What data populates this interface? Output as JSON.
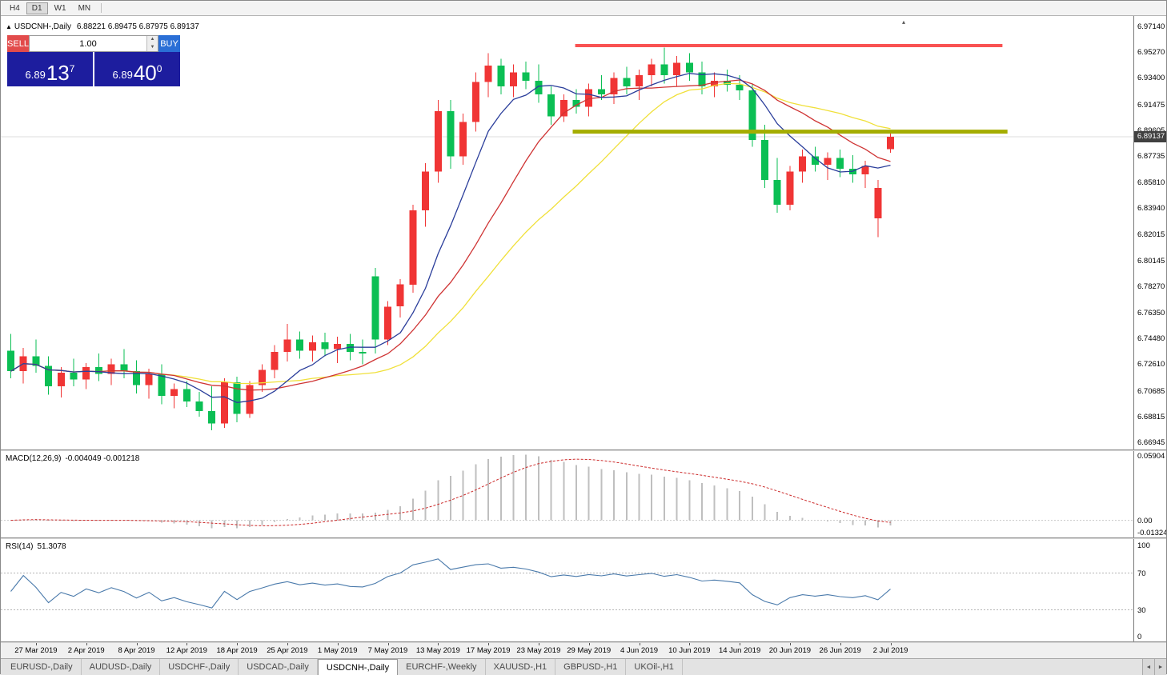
{
  "toolbar": {
    "timeframes": [
      "H4",
      "D1",
      "W1",
      "MN"
    ],
    "active_timeframe": "D1"
  },
  "info_bar": {
    "collapse_arrow": "▲",
    "symbol_label": "USDCNH-,Daily",
    "ohlc_values": "6.88221 6.89475 6.87975 6.89137"
  },
  "trade_panel": {
    "sell_label": "SELL",
    "buy_label": "BUY",
    "volume": "1.00",
    "spin_up": "▲",
    "spin_down": "▼",
    "sell_price": {
      "prefix": "6.89",
      "main": "13",
      "sup": "7"
    },
    "buy_price": {
      "prefix": "6.89",
      "main": "40",
      "sup": "0"
    }
  },
  "chart_data": {
    "type": "candlestick",
    "symbol": "USDCNH-,Daily",
    "current_price": "6.89137",
    "scale": {
      "min": 6.6642,
      "max": 6.979
    },
    "price_ticks": [
      "6.97140",
      "6.95270",
      "6.93400",
      "6.91475",
      "6.89605",
      "6.87735",
      "6.85810",
      "6.83940",
      "6.82015",
      "6.80145",
      "6.78270",
      "6.76350",
      "6.74480",
      "6.72610",
      "6.70685",
      "6.68815",
      "6.66945"
    ],
    "date_ticks": [
      {
        "index": 2,
        "label": "27 Mar 2019"
      },
      {
        "index": 6,
        "label": "2 Apr 2019"
      },
      {
        "index": 10,
        "label": "8 Apr 2019"
      },
      {
        "index": 14,
        "label": "12 Apr 2019"
      },
      {
        "index": 18,
        "label": "18 Apr 2019"
      },
      {
        "index": 22,
        "label": "25 Apr 2019"
      },
      {
        "index": 26,
        "label": "1 May 2019"
      },
      {
        "index": 30,
        "label": "7 May 2019"
      },
      {
        "index": 34,
        "label": "13 May 2019"
      },
      {
        "index": 38,
        "label": "17 May 2019"
      },
      {
        "index": 42,
        "label": "23 May 2019"
      },
      {
        "index": 46,
        "label": "29 May 2019"
      },
      {
        "index": 50,
        "label": "4 Jun 2019"
      },
      {
        "index": 54,
        "label": "10 Jun 2019"
      },
      {
        "index": 58,
        "label": "14 Jun 2019"
      },
      {
        "index": 62,
        "label": "20 Jun 2019"
      },
      {
        "index": 66,
        "label": "26 Jun 2019"
      },
      {
        "index": 70,
        "label": "2 Jul 2019"
      }
    ],
    "hlines": [
      {
        "name": "resistance-line",
        "price": 6.9575,
        "from_index": 45.2,
        "to_index": 79.2,
        "thickness": 4,
        "color": "#f95252"
      },
      {
        "name": "support-line",
        "price": 6.895,
        "from_index": 45.0,
        "to_index": 79.6,
        "thickness": 5,
        "color": "#a4ad00"
      }
    ],
    "colors": {
      "bull": "#f03535",
      "bear": "#0bbf54",
      "ma_fast": "#2b3e9b",
      "ma_mid": "#cf3434",
      "ma_slow": "#f0e03a",
      "macd_histogram": "#bfbfbf",
      "macd_signal": "#cc2a2a",
      "rsi_line": "#4a7aab",
      "price_line": "#dcdcdc",
      "badge_bg": "#404040"
    },
    "ma_periods": {
      "fast": 7,
      "mid": 13,
      "slow": 21
    },
    "candles": [
      [
        6.736,
        6.748,
        6.716,
        6.721
      ],
      [
        6.721,
        6.738,
        6.712,
        6.732
      ],
      [
        6.732,
        6.744,
        6.72,
        6.725
      ],
      [
        6.725,
        6.732,
        6.704,
        6.71
      ],
      [
        6.71,
        6.724,
        6.702,
        6.72
      ],
      [
        6.72,
        6.73,
        6.71,
        6.715
      ],
      [
        6.715,
        6.727,
        6.708,
        6.724
      ],
      [
        6.724,
        6.734,
        6.714,
        6.719
      ],
      [
        6.719,
        6.73,
        6.711,
        6.726
      ],
      [
        6.726,
        6.737,
        6.716,
        6.721
      ],
      [
        6.721,
        6.729,
        6.705,
        6.711
      ],
      [
        6.711,
        6.723,
        6.701,
        6.719
      ],
      [
        6.719,
        6.726,
        6.697,
        6.703
      ],
      [
        6.703,
        6.712,
        6.694,
        6.708
      ],
      [
        6.708,
        6.714,
        6.695,
        6.699
      ],
      [
        6.699,
        6.706,
        6.688,
        6.692
      ],
      [
        6.692,
        6.71,
        6.678,
        6.683
      ],
      [
        6.683,
        6.716,
        6.68,
        6.713
      ],
      [
        6.713,
        6.717,
        6.684,
        6.69
      ],
      [
        6.69,
        6.714,
        6.687,
        6.711
      ],
      [
        6.711,
        6.726,
        6.706,
        6.722
      ],
      [
        6.722,
        6.74,
        6.716,
        6.735
      ],
      [
        6.735,
        6.7555,
        6.728,
        6.744
      ],
      [
        6.744,
        6.75,
        6.73,
        6.736
      ],
      [
        6.736,
        6.747,
        6.728,
        6.742
      ],
      [
        6.742,
        6.749,
        6.732,
        6.737
      ],
      [
        6.737,
        6.746,
        6.727,
        6.741
      ],
      [
        6.741,
        6.748,
        6.729,
        6.735
      ],
      [
        6.735,
        6.744,
        6.726,
        6.734
      ],
      [
        6.79,
        6.796,
        6.734,
        6.744
      ],
      [
        6.744,
        6.772,
        6.74,
        6.768
      ],
      [
        6.768,
        6.788,
        6.76,
        6.784
      ],
      [
        6.784,
        6.842,
        6.778,
        6.838
      ],
      [
        6.838,
        6.872,
        6.826,
        6.866
      ],
      [
        6.866,
        6.918,
        6.858,
        6.91
      ],
      [
        6.91,
        6.918,
        6.868,
        6.877
      ],
      [
        6.877,
        6.908,
        6.871,
        6.902
      ],
      [
        6.902,
        6.938,
        6.895,
        6.931
      ],
      [
        6.931,
        6.952,
        6.92,
        6.943
      ],
      [
        6.943,
        6.948,
        6.922,
        6.928
      ],
      [
        6.928,
        6.944,
        6.92,
        6.938
      ],
      [
        6.938,
        6.946,
        6.926,
        6.932
      ],
      [
        6.932,
        6.944,
        6.916,
        6.922
      ],
      [
        6.922,
        6.928,
        6.9,
        6.906
      ],
      [
        6.906,
        6.922,
        6.902,
        6.918
      ],
      [
        6.918,
        6.926,
        6.908,
        6.913
      ],
      [
        6.913,
        6.93,
        6.906,
        6.926
      ],
      [
        6.926,
        6.936,
        6.918,
        6.922
      ],
      [
        6.922,
        6.938,
        6.915,
        6.934
      ],
      [
        6.934,
        6.942,
        6.922,
        6.928
      ],
      [
        6.928,
        6.94,
        6.918,
        6.936
      ],
      [
        6.936,
        6.948,
        6.928,
        6.944
      ],
      [
        6.944,
        6.956,
        6.93,
        6.936
      ],
      [
        6.936,
        6.95,
        6.928,
        6.945
      ],
      [
        6.945,
        6.952,
        6.932,
        6.938
      ],
      [
        6.938,
        6.946,
        6.922,
        6.928
      ],
      [
        6.928,
        6.938,
        6.92,
        6.932
      ],
      [
        6.932,
        6.94,
        6.924,
        6.929
      ],
      [
        6.929,
        6.936,
        6.918,
        6.925
      ],
      [
        6.925,
        6.93,
        6.884,
        6.889
      ],
      [
        6.889,
        6.9,
        6.854,
        6.86
      ],
      [
        6.86,
        6.876,
        6.836,
        6.842
      ],
      [
        6.842,
        6.87,
        6.838,
        6.866
      ],
      [
        6.866,
        6.882,
        6.858,
        6.877
      ],
      [
        6.877,
        6.884,
        6.866,
        6.871
      ],
      [
        6.871,
        6.88,
        6.86,
        6.876
      ],
      [
        6.876,
        6.882,
        6.862,
        6.868
      ],
      [
        6.868,
        6.878,
        6.858,
        6.864
      ],
      [
        6.864,
        6.874,
        6.854,
        6.87
      ],
      [
        6.832,
        6.86,
        6.8185,
        6.854
      ],
      [
        6.8822,
        6.8948,
        6.8798,
        6.8914
      ]
    ],
    "macd": {
      "label": "MACD(12,26,9)",
      "values": "-0.004049 -0.001218",
      "axis_ticks": [
        "0.05904",
        "0.00",
        "-0.01324"
      ],
      "scale": {
        "min": -0.0148,
        "max": 0.06
      },
      "fast": 12,
      "slow": 26,
      "signal": 9
    },
    "rsi": {
      "label": "RSI(14)",
      "value": "51.3078",
      "axis_ticks": [
        "100",
        "70",
        "30",
        "0"
      ],
      "levels": [
        70,
        30
      ],
      "period": 14
    }
  },
  "tabbar": {
    "tabs": [
      "EURUSD-,Daily",
      "AUDUSD-,Daily",
      "USDCHF-,Daily",
      "USDCAD-,Daily",
      "USDCNH-,Daily",
      "EURCHF-,Weekly",
      "XAUUSD-,H1",
      "GBPUSD-,H1",
      "UKOil-,H1"
    ],
    "active": "USDCNH-,Daily",
    "scroll_left": "◄",
    "scroll_right": "►"
  }
}
